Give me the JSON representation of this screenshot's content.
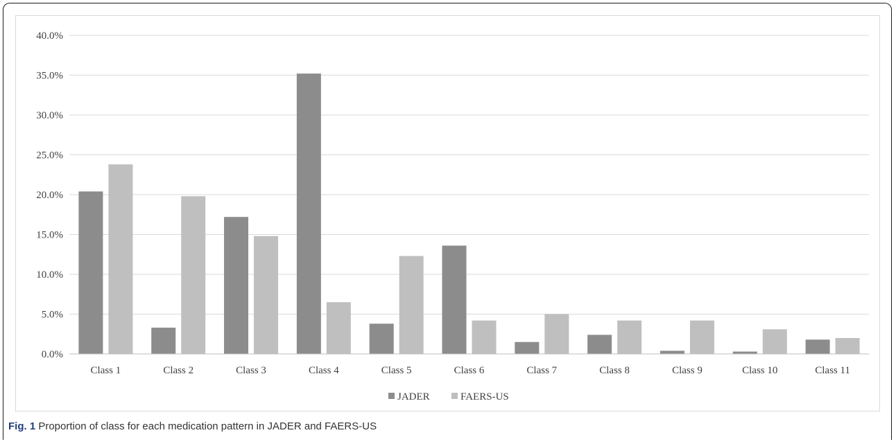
{
  "figure": {
    "label": "Fig. 1",
    "caption": "Proportion of class for each medication pattern in JADER and FAERS-US"
  },
  "chart_data": {
    "type": "bar",
    "categories": [
      "Class 1",
      "Class 2",
      "Class 3",
      "Class 4",
      "Class 5",
      "Class 6",
      "Class 7",
      "Class 8",
      "Class 9",
      "Class 10",
      "Class 11"
    ],
    "series": [
      {
        "name": "JADER",
        "color": "#8c8c8c",
        "values": [
          20.4,
          3.3,
          17.2,
          35.2,
          3.8,
          13.6,
          1.5,
          2.4,
          0.4,
          0.3,
          1.8
        ]
      },
      {
        "name": "FAERS-US",
        "color": "#bfbfbf",
        "values": [
          23.8,
          19.8,
          14.8,
          6.5,
          12.3,
          4.2,
          5.0,
          4.2,
          4.2,
          3.1,
          2.0
        ]
      }
    ],
    "yticks": [
      "0.0%",
      "5.0%",
      "10.0%",
      "15.0%",
      "20.0%",
      "25.0%",
      "30.0%",
      "35.0%",
      "40.0%"
    ],
    "ylim": [
      0,
      40
    ],
    "grid": true,
    "legend_position": "bottom"
  }
}
